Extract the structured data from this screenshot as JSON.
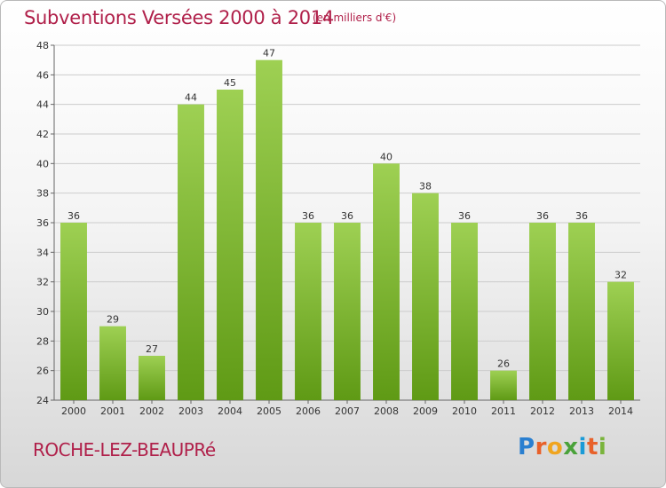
{
  "chart_data": {
    "type": "bar",
    "title": "Subventions Versées 2000 à 2014",
    "subtitle": "(en milliers d'€)",
    "categories": [
      "2000",
      "2001",
      "2002",
      "2003",
      "2004",
      "2005",
      "2006",
      "2007",
      "2008",
      "2009",
      "2010",
      "2011",
      "2012",
      "2013",
      "2014"
    ],
    "values": [
      36,
      29,
      27,
      44,
      45,
      47,
      36,
      36,
      40,
      38,
      36,
      26,
      36,
      36,
      32
    ],
    "ylim": [
      24,
      48
    ],
    "yticks": [
      24,
      26,
      28,
      30,
      32,
      34,
      36,
      38,
      40,
      42,
      44,
      46,
      48
    ],
    "grid": true,
    "xlabel": "",
    "ylabel": "",
    "bar_color_top": "#9ed053",
    "bar_color_bottom": "#5f9a15",
    "grid_color": "#cccccc"
  },
  "footer": {
    "place": "ROCHE-LEZ-BEAUPRé",
    "logo_letters": [
      "P",
      "r",
      "o",
      "x",
      "i",
      "t",
      "i"
    ]
  }
}
